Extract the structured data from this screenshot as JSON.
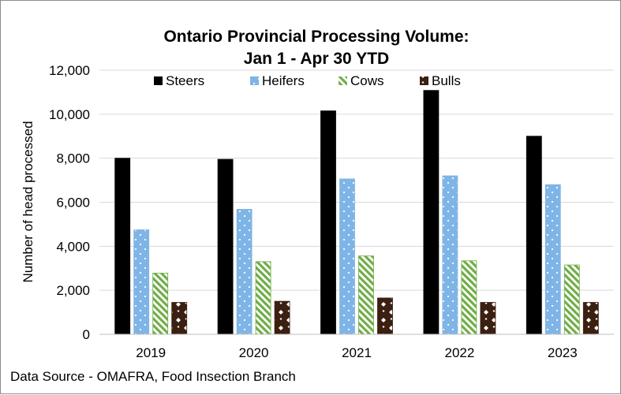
{
  "chart_data": {
    "type": "bar",
    "title_lines": [
      "Ontario Provincial Processing Volume:",
      "Jan 1 - Apr 30 YTD"
    ],
    "xlabel": "",
    "ylabel": "Number of head processed",
    "ylim": [
      0,
      12000
    ],
    "y_ticks": [
      "0",
      "2,000",
      "4,000",
      "6,000",
      "8,000",
      "10,000",
      "12,000"
    ],
    "categories": [
      "2019",
      "2020",
      "2021",
      "2022",
      "2023"
    ],
    "series": [
      {
        "name": "Steers",
        "values": [
          8000,
          7950,
          10150,
          11080,
          9000
        ],
        "color": "#000000",
        "pattern": "solid"
      },
      {
        "name": "Heifers",
        "values": [
          4750,
          5680,
          7060,
          7200,
          6800
        ],
        "color": "#7fb5e6",
        "pattern": "dots"
      },
      {
        "name": "Cows",
        "values": [
          2780,
          3300,
          3560,
          3340,
          3150
        ],
        "color": "#70ad47",
        "pattern": "diagonal"
      },
      {
        "name": "Bulls",
        "values": [
          1450,
          1500,
          1650,
          1450,
          1450
        ],
        "color": "#3b1f10",
        "pattern": "checker"
      }
    ],
    "legend_position": "top",
    "grid": true,
    "source_note": "Data Source - OMAFRA, Food Insection Branch"
  }
}
